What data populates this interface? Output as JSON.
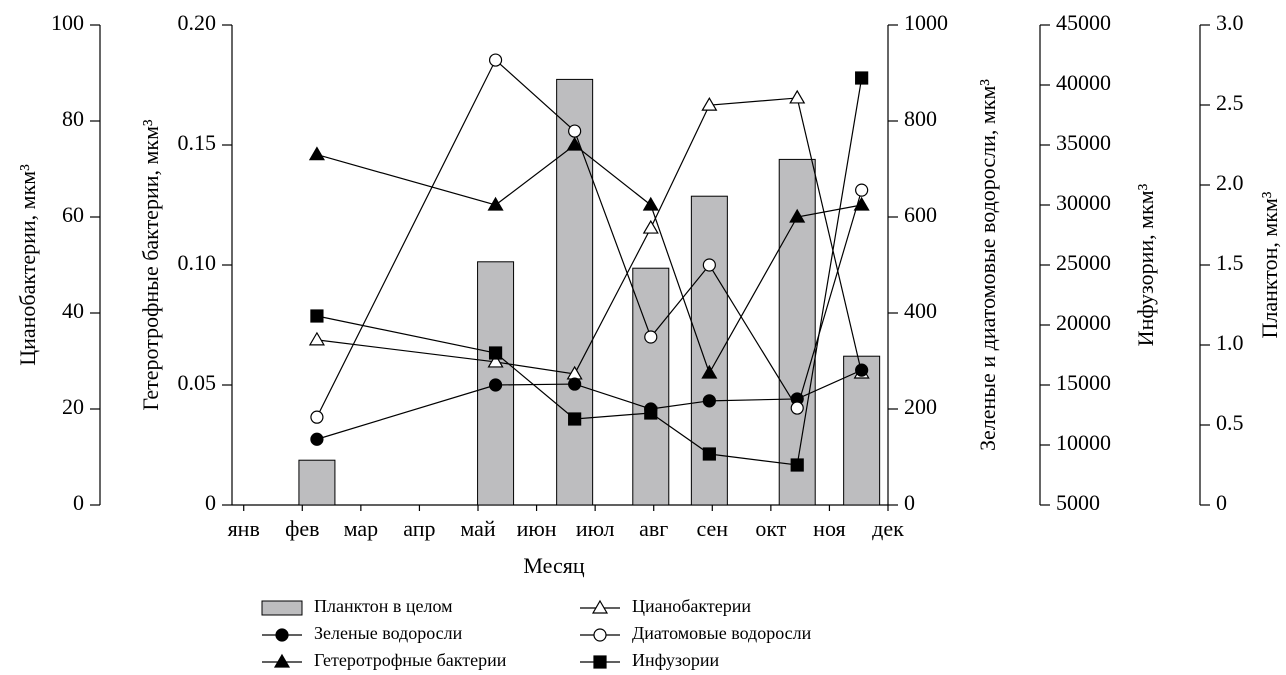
{
  "chart_data": {
    "type": "combo",
    "x_label": "Месяц",
    "xlim": [
      -0.2,
      11
    ],
    "xticks": [
      {
        "value": 0,
        "label": "янв"
      },
      {
        "value": 1,
        "label": "фев"
      },
      {
        "value": 2,
        "label": "мар"
      },
      {
        "value": 3,
        "label": "апр"
      },
      {
        "value": 4,
        "label": "май"
      },
      {
        "value": 5,
        "label": "июн"
      },
      {
        "value": 6,
        "label": "июл"
      },
      {
        "value": 7,
        "label": "авг"
      },
      {
        "value": 8,
        "label": "сен"
      },
      {
        "value": 9,
        "label": "окт"
      },
      {
        "value": 10,
        "label": "ноя"
      },
      {
        "value": 11,
        "label": "дек"
      }
    ],
    "x": [
      1.25,
      4.3,
      5.65,
      6.95,
      7.95,
      9.45,
      10.55
    ],
    "y_label": "Цианобактерии, мкм³",
    "ylim": [
      0,
      100
    ],
    "yticks": [
      0,
      20,
      40,
      60,
      80,
      100
    ],
    "y2_label": "Гетеротрофные бактерии, мкм³",
    "y2lim": [
      0,
      0.2
    ],
    "y2ticks": [
      0,
      0.05,
      {
        "value": 0.1,
        "label": "0.10"
      },
      0.15,
      {
        "value": 0.2,
        "label": "0.20"
      }
    ],
    "y3_label": "Зеленые и диатомовые водоросли, мкм³",
    "y3lim": [
      0,
      1000
    ],
    "y3ticks": [
      0,
      200,
      400,
      600,
      800,
      1000
    ],
    "y4_label": "Инфузории, мкм³",
    "y4lim": [
      5000,
      45000
    ],
    "y4ticks": [
      5000,
      10000,
      15000,
      20000,
      25000,
      30000,
      35000,
      40000,
      45000
    ],
    "y5_label": "Планктон, мкм³",
    "y5lim": [
      0,
      3
    ],
    "y5ticks": [
      0,
      0.5,
      {
        "value": 1,
        "label": "1.0"
      },
      1.5,
      {
        "value": 2,
        "label": "2.0"
      },
      2.5,
      {
        "value": 3,
        "label": "3.0"
      }
    ],
    "series": [
      {
        "name": "Планктон в целом",
        "type": "bar",
        "axis": "y5",
        "color": "#bdbdbf",
        "values": [
          0.28,
          1.52,
          2.66,
          1.48,
          1.93,
          2.16,
          0.93
        ]
      },
      {
        "name": "Цианобактерии",
        "type": "line",
        "axis": "y",
        "marker": "triangle-open",
        "color": "#000000",
        "values": [
          34.4,
          29.8,
          27.3,
          57.7,
          83.3,
          84.8,
          27.5
        ]
      },
      {
        "name": "Зеленые водоросли",
        "type": "line",
        "axis": "y3",
        "marker": "circle",
        "color": "#000000",
        "values": [
          137,
          250,
          252,
          200,
          217,
          221,
          281
        ]
      },
      {
        "name": "Диатомовые водоросли",
        "type": "line",
        "axis": "y3",
        "marker": "circle-open",
        "color": "#000000",
        "values": [
          183,
          927,
          779,
          350,
          500,
          202,
          656
        ]
      },
      {
        "name": "Гетеротрофные бактерии",
        "type": "line",
        "axis": "y2",
        "marker": "triangle",
        "color": "#000000",
        "values": [
          0.146,
          0.125,
          0.15,
          0.125,
          0.055,
          0.12,
          0.125
        ]
      },
      {
        "name": "Инфузории",
        "type": "line",
        "axis": "y4",
        "marker": "square",
        "color": "#000000",
        "values": [
          20750,
          17667,
          12167,
          12667,
          9250,
          8333,
          40583
        ]
      }
    ]
  }
}
